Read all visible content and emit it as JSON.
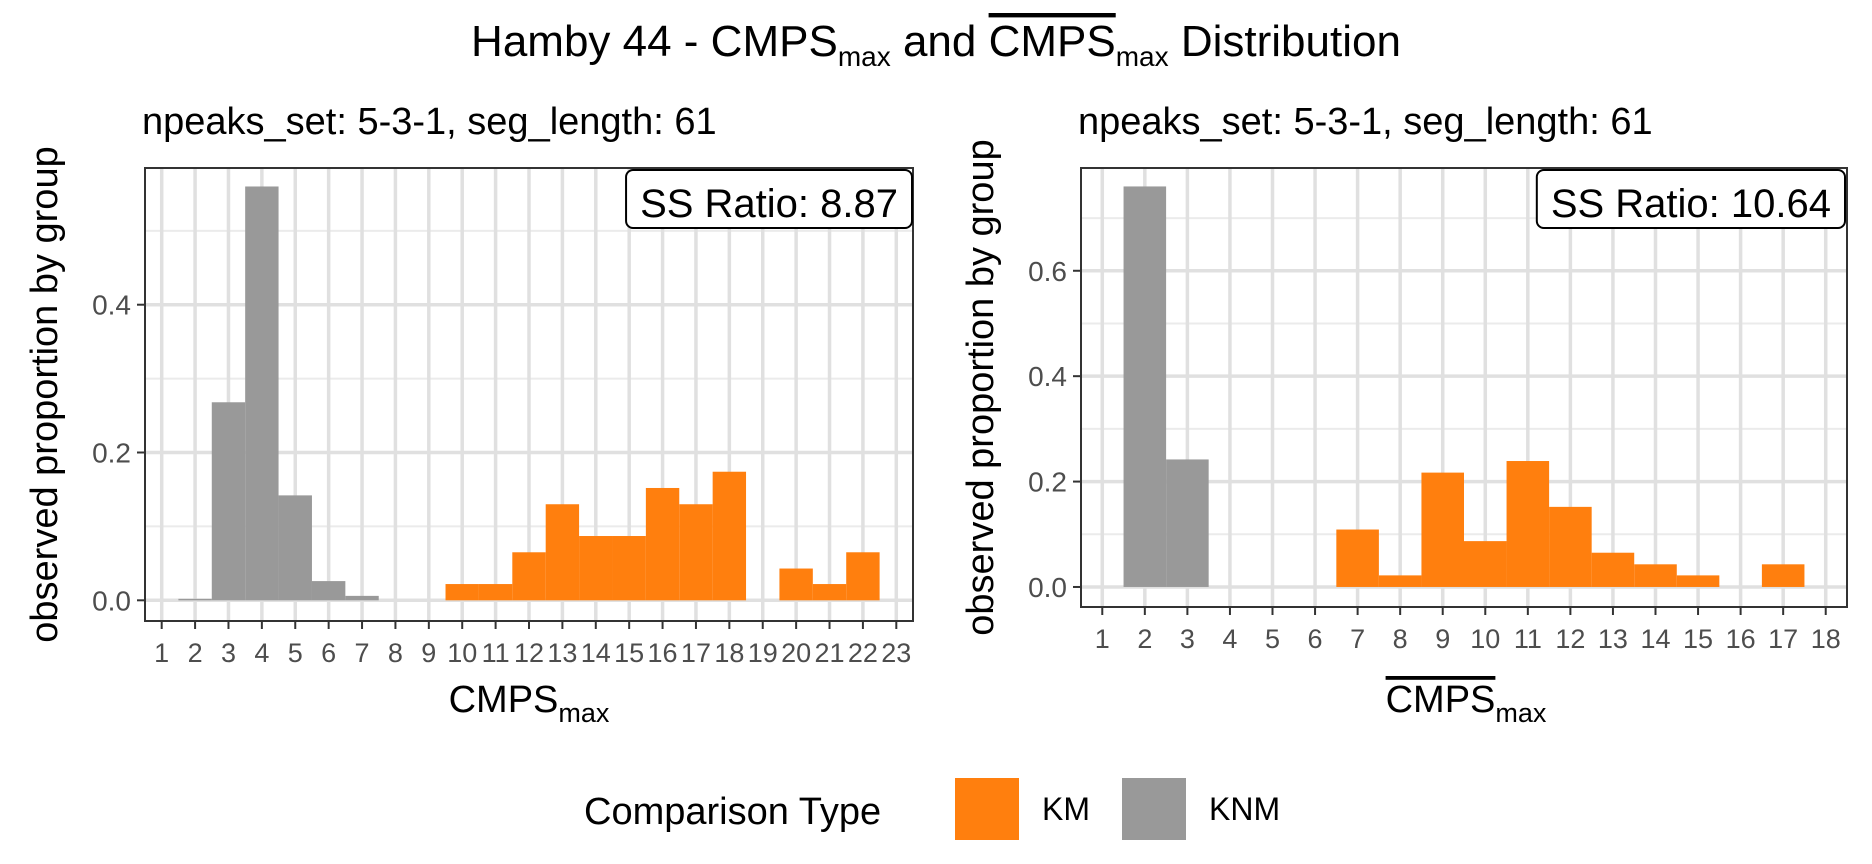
{
  "figure": {
    "title_prefix": "Hamby 44 - CMPS",
    "title_sub1": "max",
    "title_and": " and ",
    "title_bar": "CMPS",
    "title_sub2": "max",
    "title_suffix": " Distribution"
  },
  "legend": {
    "title": "Comparison Type",
    "items": [
      {
        "label": "KM",
        "color": "#FF7F0E"
      },
      {
        "label": "KNM",
        "color": "#999999"
      }
    ]
  },
  "chart_data": [
    {
      "type": "bar",
      "subtitle": "npeaks_set: 5-3-1, seg_length: 61",
      "ylabel": "observed proportion by group",
      "xlabel_main": "CMPS",
      "xlabel_sub": "max",
      "xlabel_overline": false,
      "annotation": "SS Ratio: 8.87",
      "xlim": [
        0.5,
        23.5
      ],
      "ylim": [
        -0.028,
        0.585
      ],
      "x_ticks": [
        1,
        2,
        3,
        4,
        5,
        6,
        7,
        8,
        9,
        10,
        11,
        12,
        13,
        14,
        15,
        16,
        17,
        18,
        19,
        20,
        21,
        22,
        23
      ],
      "y_ticks": [
        0.0,
        0.2,
        0.4
      ],
      "y_tick_labels": [
        "0.0",
        "0.2",
        "0.4"
      ],
      "grid": true,
      "series": [
        {
          "name": "KNM",
          "x": [
            2,
            3,
            4,
            5,
            6,
            7
          ],
          "values": [
            0.002,
            0.268,
            0.56,
            0.142,
            0.026,
            0.006
          ]
        },
        {
          "name": "KM",
          "x": [
            10,
            11,
            12,
            13,
            14,
            15,
            16,
            17,
            18,
            20,
            21,
            22
          ],
          "values": [
            0.022,
            0.022,
            0.065,
            0.13,
            0.087,
            0.087,
            0.152,
            0.13,
            0.174,
            0.043,
            0.022,
            0.065
          ]
        }
      ]
    },
    {
      "type": "bar",
      "subtitle": "npeaks_set: 5-3-1, seg_length: 61",
      "ylabel": "observed proportion by group",
      "xlabel_main": "CMPS",
      "xlabel_sub": "max",
      "xlabel_overline": true,
      "annotation": "SS Ratio: 10.64",
      "xlim": [
        0.5,
        18.5
      ],
      "ylim": [
        -0.038,
        0.795
      ],
      "x_ticks": [
        1,
        2,
        3,
        4,
        5,
        6,
        7,
        8,
        9,
        10,
        11,
        12,
        13,
        14,
        15,
        16,
        17,
        18
      ],
      "y_ticks": [
        0.0,
        0.2,
        0.4,
        0.6
      ],
      "y_tick_labels": [
        "0.0",
        "0.2",
        "0.4",
        "0.6"
      ],
      "grid": true,
      "series": [
        {
          "name": "KNM",
          "x": [
            2,
            3
          ],
          "values": [
            0.76,
            0.242
          ]
        },
        {
          "name": "KM",
          "x": [
            7,
            8,
            9,
            10,
            11,
            12,
            13,
            14,
            15,
            17
          ],
          "values": [
            0.109,
            0.022,
            0.217,
            0.087,
            0.239,
            0.152,
            0.065,
            0.043,
            0.022,
            0.043
          ]
        }
      ]
    }
  ]
}
